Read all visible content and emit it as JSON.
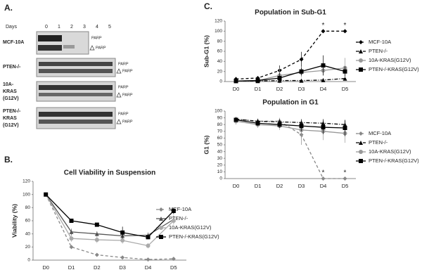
{
  "panel_labels": [
    "A.",
    "B.",
    "C."
  ],
  "blot": {
    "days_label": "Days",
    "days": [
      "0",
      "1",
      "2",
      "3",
      "4",
      "5"
    ],
    "rows": [
      {
        "label": [
          "MCF-10A"
        ],
        "bands": [
          "PARP",
          "PARP"
        ]
      },
      {
        "label": [
          "PTEN-/-"
        ],
        "bands": [
          "PARP",
          "PARP"
        ]
      },
      {
        "label": [
          "10A-",
          "KRAS",
          "(G12V)"
        ],
        "bands": [
          "PARP",
          "PARP"
        ]
      },
      {
        "label": [
          "PTEN-/-",
          "KRAS",
          "(G12V)"
        ],
        "bands": [
          "PARP",
          "PARP"
        ]
      }
    ]
  },
  "chart_data": [
    {
      "type": "line",
      "title": "Cell Viability in Suspension",
      "y_label": "Viability (%)",
      "categories": [
        "D0",
        "D1",
        "D2",
        "D3",
        "D4",
        "D5"
      ],
      "ylim": [
        0,
        120
      ],
      "yticks": [
        0,
        20,
        40,
        60,
        80,
        100,
        120
      ],
      "grid": false,
      "series": [
        {
          "name": "MCF-10A",
          "color": "#888888",
          "dash": "dashed",
          "marker": "diamond",
          "values": [
            100,
            20,
            8,
            4,
            1,
            2
          ],
          "errors": [
            0,
            3,
            1,
            1,
            1,
            1
          ]
        },
        {
          "name": "PTEN-/-",
          "color": "#555555",
          "dash": "solid",
          "marker": "triangle",
          "values": [
            100,
            43,
            40,
            37,
            38,
            62
          ],
          "errors": [
            0,
            5,
            4,
            6,
            4,
            6
          ]
        },
        {
          "name": "10A-KRAS(G12V)",
          "color": "#aaaaaa",
          "dash": "solid",
          "marker": "circle",
          "values": [
            100,
            33,
            31,
            30,
            22,
            60
          ],
          "errors": [
            0,
            5,
            5,
            5,
            4,
            6
          ]
        },
        {
          "name": "PTEN-/-KRAS(G12V)",
          "color": "#000000",
          "dash": "solid",
          "marker": "square",
          "values": [
            100,
            60,
            54,
            42,
            35,
            75
          ],
          "errors": [
            0,
            3,
            2,
            9,
            3,
            5
          ]
        }
      ]
    },
    {
      "type": "line",
      "title": "Population in Sub-G1",
      "y_label": "Sub-G1 (%)",
      "categories": [
        "D0",
        "D1",
        "D2",
        "D3",
        "D4",
        "D5"
      ],
      "ylim": [
        0,
        120
      ],
      "yticks": [
        0,
        20,
        40,
        60,
        80,
        100,
        120
      ],
      "grid": false,
      "annotations": [
        {
          "text": "*",
          "x": "D4"
        },
        {
          "text": "*",
          "x": "D5"
        }
      ],
      "series": [
        {
          "name": "MCF-10A",
          "color": "#000000",
          "dash": "dashed",
          "marker": "diamond",
          "values": [
            5,
            7,
            22,
            44,
            100,
            100
          ],
          "errors": [
            2,
            3,
            10,
            15,
            0,
            0
          ]
        },
        {
          "name": "PTEN-/-",
          "color": "#000000",
          "dash": "dashdot",
          "marker": "triangle",
          "values": [
            1,
            1,
            2,
            2,
            3,
            6
          ],
          "errors": [
            1,
            1,
            1,
            1,
            2,
            2
          ]
        },
        {
          "name": "10A-KRAS(G12V)",
          "color": "#999999",
          "dash": "solid",
          "marker": "circle",
          "values": [
            1,
            2,
            12,
            18,
            22,
            27
          ],
          "errors": [
            1,
            2,
            15,
            10,
            10,
            20
          ]
        },
        {
          "name": "PTEN-/-KRAS(G12V)",
          "color": "#000000",
          "dash": "solid",
          "marker": "square",
          "values": [
            1,
            2,
            7,
            20,
            32,
            20
          ],
          "errors": [
            1,
            1,
            10,
            8,
            20,
            10
          ]
        }
      ]
    },
    {
      "type": "line",
      "title": "Population in G1",
      "y_label": "G1 (%)",
      "categories": [
        "D0",
        "D1",
        "D2",
        "D3",
        "D4",
        "D5"
      ],
      "ylim": [
        0,
        100
      ],
      "yticks": [
        0,
        10,
        20,
        30,
        40,
        50,
        60,
        70,
        80,
        90,
        100
      ],
      "grid": false,
      "annotations": [
        {
          "text": "*",
          "x": "D4"
        },
        {
          "text": "*",
          "x": "D5"
        }
      ],
      "series": [
        {
          "name": "MCF-10A",
          "color": "#888888",
          "dash": "dashed",
          "marker": "diamond",
          "values": [
            88,
            85,
            85,
            65,
            0,
            0
          ],
          "errors": [
            3,
            4,
            5,
            15,
            0,
            0
          ]
        },
        {
          "name": "PTEN-/-",
          "color": "#000000",
          "dash": "dashdot",
          "marker": "triangle",
          "values": [
            88,
            85,
            84,
            83,
            82,
            80
          ],
          "errors": [
            3,
            3,
            4,
            5,
            6,
            6
          ]
        },
        {
          "name": "10A-KRAS(G12V)",
          "color": "#999999",
          "dash": "solid",
          "marker": "circle",
          "values": [
            85,
            80,
            78,
            72,
            70,
            67
          ],
          "errors": [
            5,
            5,
            6,
            12,
            13,
            14
          ]
        },
        {
          "name": "PTEN-/-KRAS(G12V)",
          "color": "#000000",
          "dash": "solid",
          "marker": "square",
          "values": [
            87,
            82,
            80,
            78,
            76,
            75
          ],
          "errors": [
            3,
            4,
            5,
            8,
            10,
            12
          ]
        }
      ]
    }
  ]
}
